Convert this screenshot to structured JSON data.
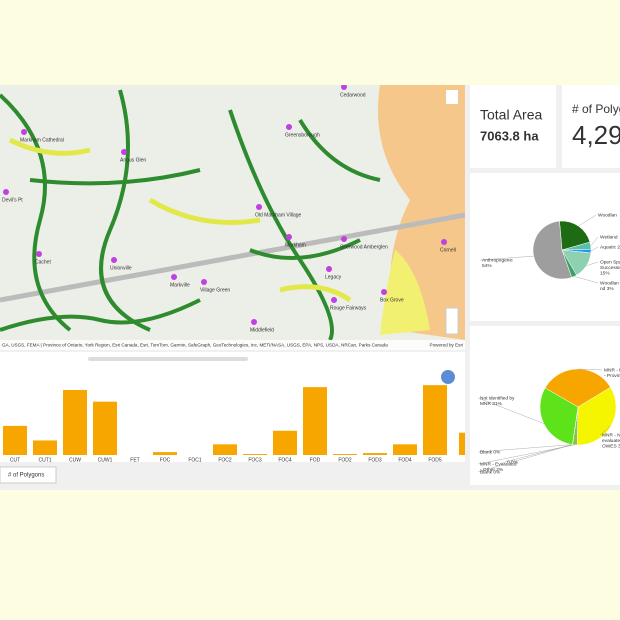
{
  "cards": [
    {
      "label": "Total Area",
      "value": "7063.8 ha"
    },
    {
      "label": "# of Polyg",
      "value": "4,29"
    }
  ],
  "map": {
    "places": [
      "Markham Cathedral",
      "Devil's Pt",
      "Angus Glen",
      "Cachet",
      "Unionville",
      "Markville",
      "Old Markham Village",
      "Markham",
      "Sherwood Amberglen",
      "Legacy",
      "Rouge Fairways",
      "Box Grove",
      "Village Green",
      "Cornell",
      "Greensborough",
      "Middlefield",
      "Cedarwood"
    ],
    "attribution": "GA, USGS, FEMA | Province of Ontario, York Region, Esri Canada, Esri, TomTom, Garmin, SafeGraph, GeoTechnologies, Inc, METI/NASA, USGS, EPA, NPS, USDA, NRCan, Parks Canada",
    "credit": "Powered by Esri"
  },
  "tab": "# of Polygons",
  "chart_data": [
    {
      "type": "bar",
      "categories": [
        "CUT",
        "CUT1",
        "CUW",
        "CUW1",
        "FET",
        "FOC",
        "FOC1",
        "FOC2",
        "FOC3",
        "FOC4",
        "FOD",
        "FOD2",
        "FOD3",
        "FOD4",
        "FOD5",
        null
      ],
      "values": [
        30,
        15,
        67,
        55,
        0,
        3,
        0,
        11,
        1,
        25,
        70,
        1,
        2,
        11,
        72,
        23
      ],
      "color": "#f7a600"
    },
    {
      "type": "pie",
      "labels": [
        [
          "Woodlan"
        ],
        [
          "Wetland"
        ],
        [
          "Aquatic 2"
        ],
        [
          "Open Spa",
          "Successio",
          "15%"
        ],
        [
          "Woodlan",
          "nd 3%"
        ],
        [
          "Anthropogenic",
          "54%"
        ]
      ],
      "values": [
        22,
        4,
        2,
        15,
        3,
        54
      ],
      "colors": [
        "#1d6b12",
        "#56c1a6",
        "#2196f3",
        "#8fd0b0",
        "#3aa36b",
        "#9e9e9e"
      ]
    },
    {
      "type": "pie",
      "labels": [
        [
          "MNR - P",
          "- Provinc"
        ],
        [
          "MNR - N",
          "evaluate",
          "OWES 3"
        ],
        [
          "MNR - Evaluated",
          "- Other 2%"
        ],
        [
          "Blank 0%"
        ],
        [
          "0 0%"
        ],
        [
          "Blank 0%"
        ],
        [
          "Not identified by",
          "MNR 31%"
        ]
      ],
      "values": [
        33,
        34,
        2,
        0,
        0,
        0,
        31
      ],
      "colors": [
        "#f7a600",
        "#f5f500",
        "#8bc34a",
        "#cccccc",
        "#999999",
        "#666666",
        "#5ee31a"
      ]
    }
  ]
}
